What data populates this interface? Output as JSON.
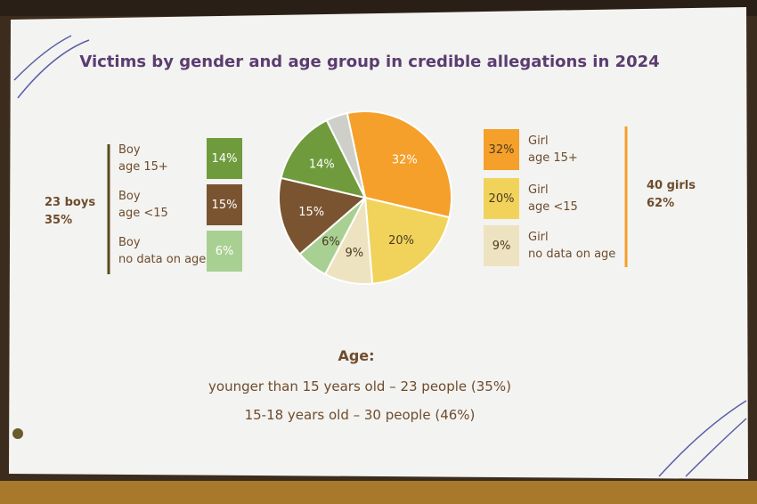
{
  "chart_data": {
    "type": "pie",
    "title": "Victims by gender and age group in credible allegations in 2024",
    "categories": [
      "Girl\nage 15+",
      "Girl\nage <15",
      "Girl\nno data on age",
      "Boy\nno data on age",
      "Boy\nage <15",
      "Boy\nage 15+",
      null
    ],
    "values": [
      32,
      20,
      9,
      6,
      15,
      14,
      4
    ],
    "value_labels": [
      "32%",
      "20%",
      "9%",
      "6%",
      "15%",
      "14%",
      null
    ],
    "colors": [
      "#f5a02a",
      "#f1d35c",
      "#eee3c0",
      "#a9d093",
      "#7a5431",
      "#6f9b3d",
      "#cfcfca"
    ],
    "group_labels": [
      "23 boys\n35%",
      "40 girls\n62%"
    ],
    "age_heading": "Age:",
    "age_lines": [
      "younger than 15 years old – 23 people (35%)",
      "15-18 years old – 30 people (46%)"
    ]
  }
}
